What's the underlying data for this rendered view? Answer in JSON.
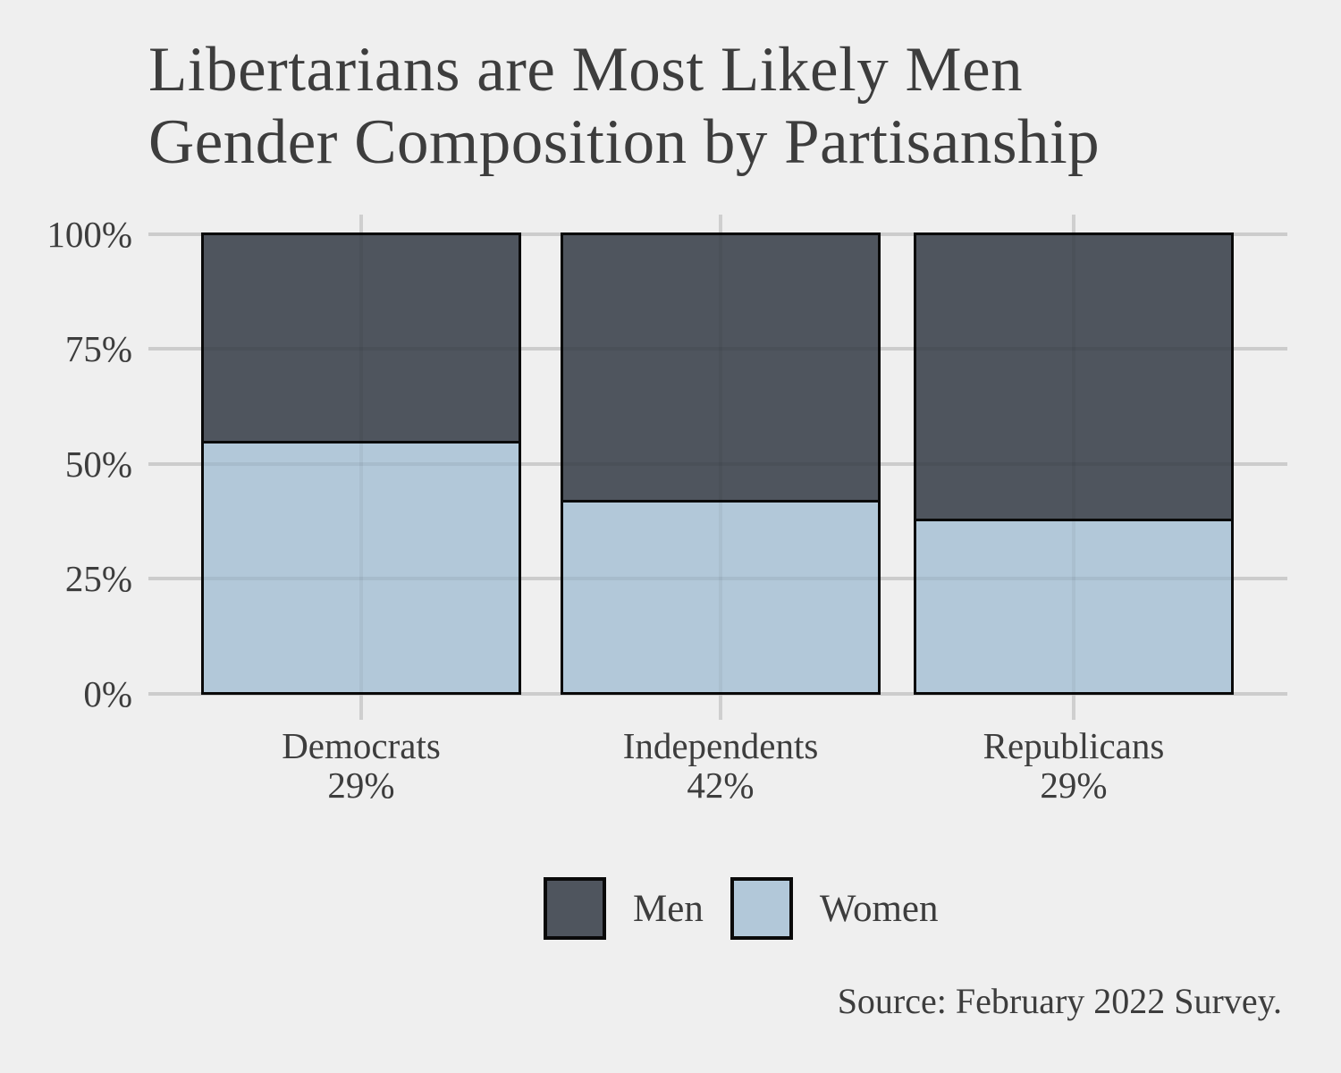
{
  "title": {
    "line1": "Libertarians are Most Likely Men",
    "line2": "Gender Composition by Partisanship"
  },
  "source": "Source: February 2022 Survey.",
  "colors": {
    "background": "#efefef",
    "men": "#4f555e",
    "women": "#b2c8d9",
    "outline": "#0a0a0a",
    "gridline": "#d9d9d9",
    "text": "#3d3d3d"
  },
  "chart_data": {
    "type": "bar",
    "stacked": true,
    "units": "percent",
    "title": "Libertarians are Most Likely Men — Gender Composition by Partisanship",
    "categories": [
      "Democrats",
      "Independents",
      "Republicans"
    ],
    "category_shares": [
      "29%",
      "42%",
      "29%"
    ],
    "series": [
      {
        "name": "Men",
        "color": "#4f555e",
        "values": [
          45,
          58,
          62
        ]
      },
      {
        "name": "Women",
        "color": "#b2c8d9",
        "values": [
          55,
          42,
          38
        ]
      }
    ],
    "y_ticks": [
      "0%",
      "25%",
      "50%",
      "75%",
      "100%"
    ],
    "ylim": [
      0,
      100
    ],
    "grid": true,
    "legend_position": "bottom"
  }
}
